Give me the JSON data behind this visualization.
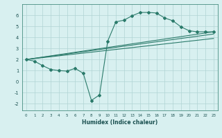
{
  "xlabel": "Humidex (Indice chaleur)",
  "bg_color": "#d8f0f0",
  "grid_color": "#b0d4d4",
  "line_color": "#2a7a6a",
  "xlim": [
    -0.5,
    23.5
  ],
  "ylim": [
    -2.6,
    7.0
  ],
  "xticks": [
    0,
    1,
    2,
    3,
    4,
    5,
    6,
    7,
    8,
    9,
    10,
    11,
    12,
    13,
    14,
    15,
    16,
    17,
    18,
    19,
    20,
    21,
    22,
    23
  ],
  "yticks": [
    -2,
    -1,
    0,
    1,
    2,
    3,
    4,
    5,
    6
  ],
  "line1_x": [
    0,
    1,
    2,
    3,
    4,
    5,
    6,
    7,
    8,
    9,
    10,
    11,
    12,
    13,
    14,
    15,
    16,
    17,
    18,
    19,
    20,
    21,
    22,
    23
  ],
  "line1_y": [
    2.0,
    1.85,
    1.45,
    1.1,
    1.0,
    0.95,
    1.2,
    0.75,
    -1.7,
    -1.2,
    3.65,
    5.4,
    5.55,
    5.95,
    6.25,
    6.25,
    6.2,
    5.75,
    5.5,
    4.95,
    4.6,
    4.5,
    4.5,
    4.5
  ],
  "line2_x": [
    0,
    23
  ],
  "line2_y": [
    2.0,
    4.5
  ],
  "line3_x": [
    0,
    23
  ],
  "line3_y": [
    2.0,
    4.3
  ],
  "line4_x": [
    0,
    23
  ],
  "line4_y": [
    2.0,
    3.9
  ]
}
